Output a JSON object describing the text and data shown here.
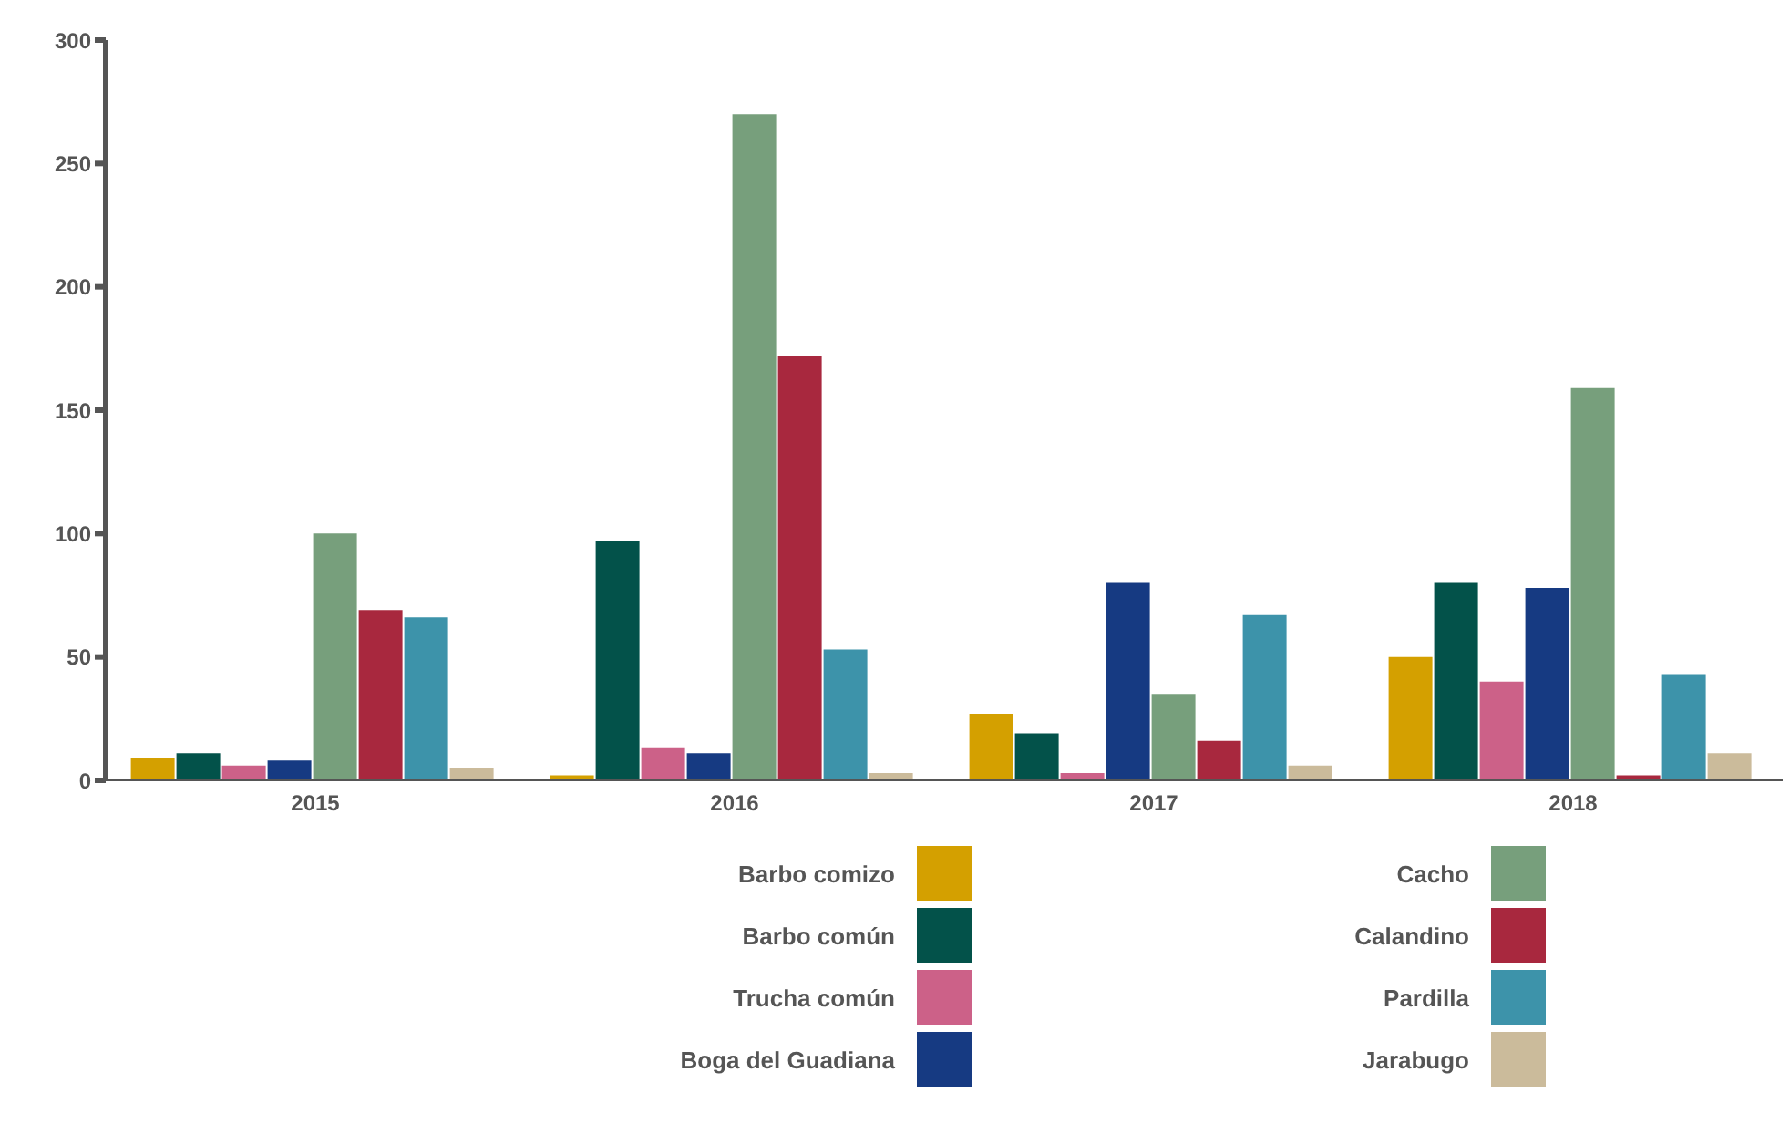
{
  "chart_data": {
    "type": "bar",
    "categories": [
      "2015",
      "2016",
      "2017",
      "2018"
    ],
    "series": [
      {
        "name": "Barbo comizo",
        "color": "#d4a000",
        "values": [
          9,
          2,
          27,
          50
        ]
      },
      {
        "name": "Barbo común",
        "color": "#03524a",
        "values": [
          11,
          97,
          19,
          80
        ]
      },
      {
        "name": "Trucha común",
        "color": "#cc6188",
        "values": [
          6,
          13,
          3,
          40
        ]
      },
      {
        "name": "Boga del Guadiana",
        "color": "#163a82",
        "values": [
          8,
          11,
          80,
          78
        ]
      },
      {
        "name": "Cacho",
        "color": "#779f7c",
        "values": [
          100,
          270,
          35,
          159
        ]
      },
      {
        "name": "Calandino",
        "color": "#a8283e",
        "values": [
          69,
          172,
          16,
          2
        ]
      },
      {
        "name": "Pardilla",
        "color": "#3d93aa",
        "values": [
          66,
          53,
          67,
          43
        ]
      },
      {
        "name": "Jarabugo",
        "color": "#cbbb9b",
        "values": [
          5,
          3,
          6,
          11
        ]
      }
    ],
    "ylim": [
      0,
      300
    ],
    "yticks": [
      0,
      50,
      100,
      150,
      200,
      250,
      300
    ],
    "grid": false,
    "legend": "bottom"
  }
}
